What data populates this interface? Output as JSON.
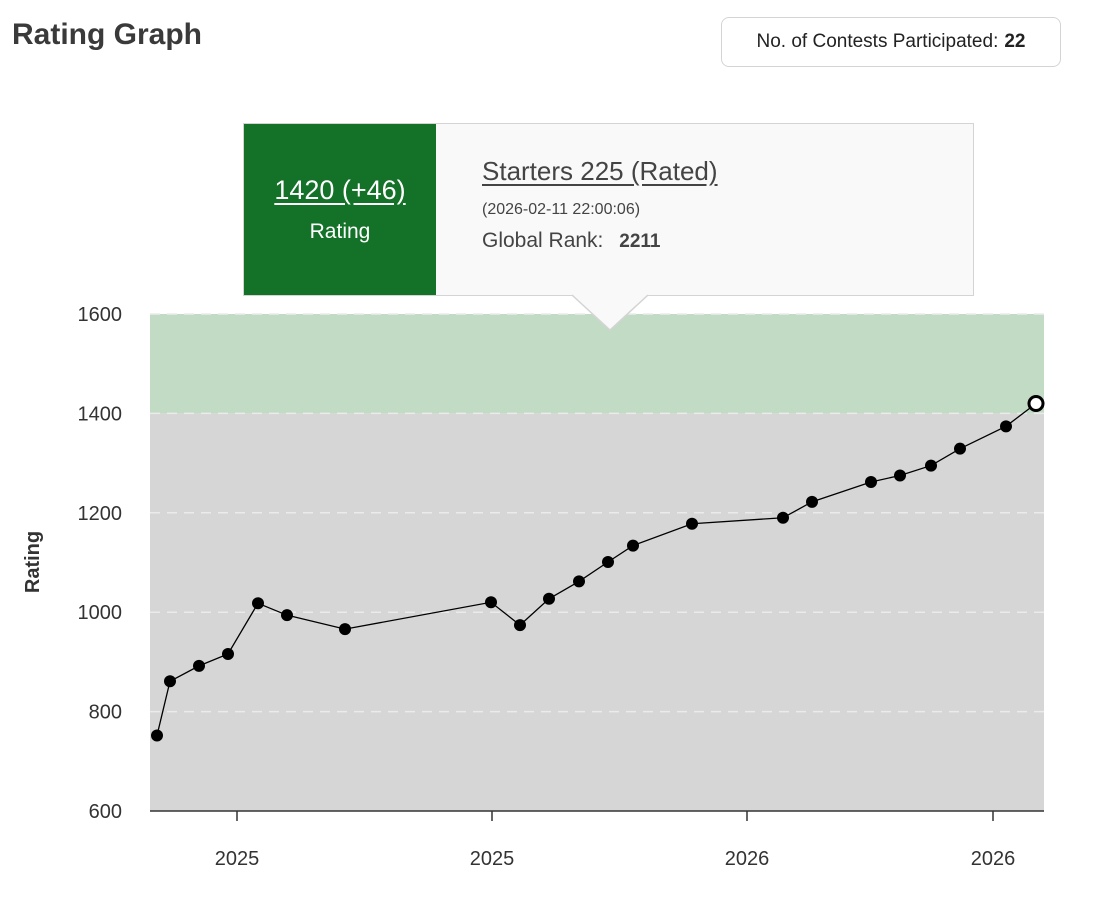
{
  "header": {
    "title": "Rating Graph",
    "contests_label": "No. of Contests Participated:",
    "contests_count": "22"
  },
  "tooltip": {
    "rating_value": "1420 (+46)",
    "rating_label": "Rating",
    "contest_name": "Starters 225 (Rated)",
    "contest_date": "(2026-02-11 22:00:06)",
    "rank_label": "Global Rank:",
    "rank_value": "2211"
  },
  "colors": {
    "band_above_1400": "#c2dbc5",
    "band_below_1400": "#d6d6d6",
    "tooltip_green": "#147128",
    "line": "#000000"
  },
  "chart_data": {
    "type": "line",
    "title": "",
    "xlabel": "",
    "ylabel": "Rating",
    "ylim": [
      600,
      1600
    ],
    "yticks": [
      600,
      800,
      1000,
      1200,
      1400,
      1600
    ],
    "xtick_labels": [
      "2025",
      "2025",
      "2026",
      "2026"
    ],
    "grid": "horizontal dashed",
    "bands": [
      {
        "from": 600,
        "to": 1400,
        "color": "#d6d6d6"
      },
      {
        "from": 1400,
        "to": 1600,
        "color": "#c2dbc5"
      }
    ],
    "highlighted_point_index": 21,
    "series": [
      {
        "values": [
          752,
          861,
          892,
          916,
          1018,
          994,
          966,
          1020,
          974,
          1027,
          1062,
          1101,
          1134,
          1178,
          1190,
          1222,
          1262,
          1275,
          1295,
          1329,
          1374,
          1420
        ]
      }
    ]
  }
}
